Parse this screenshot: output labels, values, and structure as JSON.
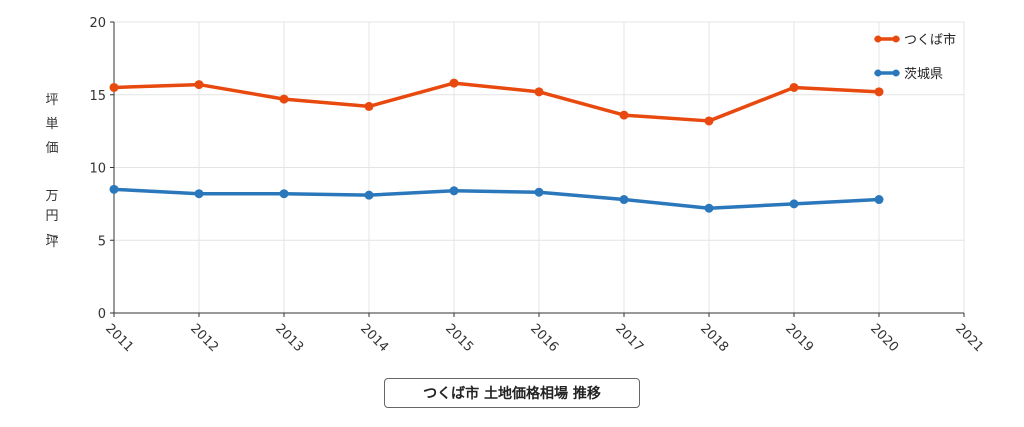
{
  "chart_data": {
    "type": "line",
    "title": "",
    "caption": "つくば市 土地価格相場 推移",
    "ylabel": "坪単価 万円/坪",
    "ylabel_parts": [
      "坪",
      "単",
      "価",
      "万",
      "円",
      "/",
      "坪"
    ],
    "xlim": [
      2011,
      2021
    ],
    "ylim": [
      0,
      20
    ],
    "x_ticks": [
      "2011",
      "2012",
      "2013",
      "2014",
      "2015",
      "2016",
      "2017",
      "2018",
      "2019",
      "2020",
      "2021"
    ],
    "y_ticks": [
      "0",
      "5",
      "10",
      "15",
      "20"
    ],
    "grid": true,
    "legend_position": "top-right",
    "x": [
      2011,
      2012,
      2013,
      2014,
      2015,
      2016,
      2017,
      2018,
      2019,
      2020
    ],
    "series": [
      {
        "name": "つくば市",
        "color": "#e8490f",
        "values": [
          15.5,
          15.7,
          14.7,
          14.2,
          15.8,
          15.2,
          13.6,
          13.2,
          15.5,
          15.2
        ]
      },
      {
        "name": "茨城県",
        "color": "#2a78bb",
        "values": [
          8.5,
          8.2,
          8.2,
          8.1,
          8.4,
          8.3,
          7.8,
          7.2,
          7.5,
          7.8
        ]
      }
    ]
  }
}
